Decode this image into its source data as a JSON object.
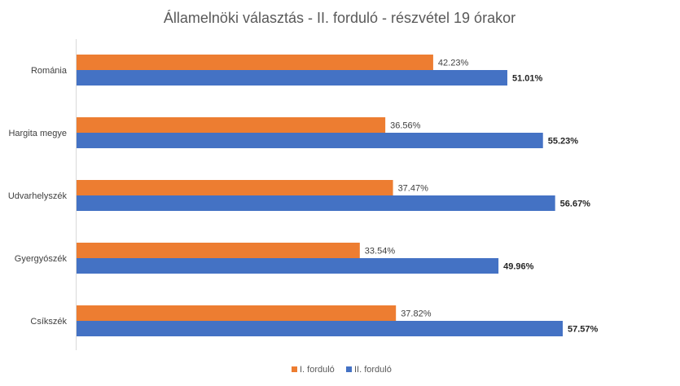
{
  "chart_data": {
    "type": "bar",
    "orientation": "horizontal",
    "title": "Államelnöki választás - II. forduló - részvétel 19 órakor",
    "categories": [
      "Románia",
      "Hargita megye",
      "Udvarhelyszék",
      "Gyergyószék",
      "Csíkszék"
    ],
    "series": [
      {
        "name": "I. forduló",
        "color": "#ED7D31",
        "values": [
          42.23,
          36.56,
          37.47,
          33.54,
          37.82
        ],
        "labels": [
          "42.23%",
          "36.56%",
          "37.47%",
          "33.54%",
          "37.82%"
        ],
        "label_bold": false
      },
      {
        "name": "II. forduló",
        "color": "#4472C4",
        "values": [
          51.01,
          55.23,
          56.67,
          49.96,
          57.57
        ],
        "labels": [
          "51.01%",
          "55.23%",
          "56.67%",
          "49.96%",
          "57.57%"
        ],
        "label_bold": true
      }
    ],
    "xlim": [
      0,
      60
    ],
    "grid": false,
    "legend": "bottom"
  }
}
